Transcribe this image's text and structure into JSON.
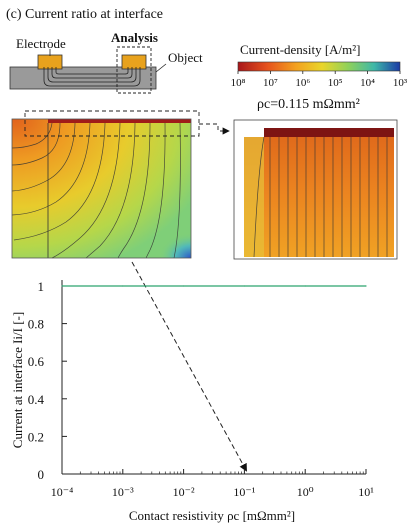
{
  "panel_title": "(c) Current ratio at interface",
  "schematic": {
    "electrode_label": "Electrode",
    "analysis_label": "Analysis",
    "object_label": "Object"
  },
  "colorbar": {
    "title": "Current-density [A/m²]",
    "tick_labels": [
      "10⁸",
      "10⁷",
      "10⁶",
      "10⁵",
      "10⁴",
      "10³"
    ]
  },
  "zoom_annotation": {
    "text": "ρc=0.115 mΩmm²"
  },
  "colors": {
    "line": "#2ca36e",
    "axis": "#222222",
    "electrode": "#e8a21d",
    "contact": "#7d1413",
    "object_gray": "#9a9a9a"
  },
  "chart_data": {
    "type": "line",
    "xscale": "log",
    "xlim": [
      0.0001,
      10
    ],
    "ylim": [
      0,
      1
    ],
    "x_ticks": [
      0.0001,
      0.001,
      0.01,
      0.1,
      1,
      10
    ],
    "x_tick_labels": [
      "10⁻⁴",
      "10⁻³",
      "10⁻²",
      "10⁻¹",
      "10⁰",
      "10¹"
    ],
    "y_ticks": [
      0,
      0.2,
      0.4,
      0.6,
      0.8,
      1
    ],
    "y_tick_labels": [
      "0",
      "0.2",
      "0.4",
      "0.6",
      "0.8",
      "1"
    ],
    "xlabel": "Contact resistivity ρc  [mΩmm²]",
    "ylabel": "Current at interface Ii/I [-]",
    "series": [
      {
        "x": [
          0.0001,
          0.001,
          0.01,
          0.1,
          1,
          10
        ],
        "y": [
          1,
          1,
          1,
          1,
          1,
          1
        ]
      }
    ]
  }
}
